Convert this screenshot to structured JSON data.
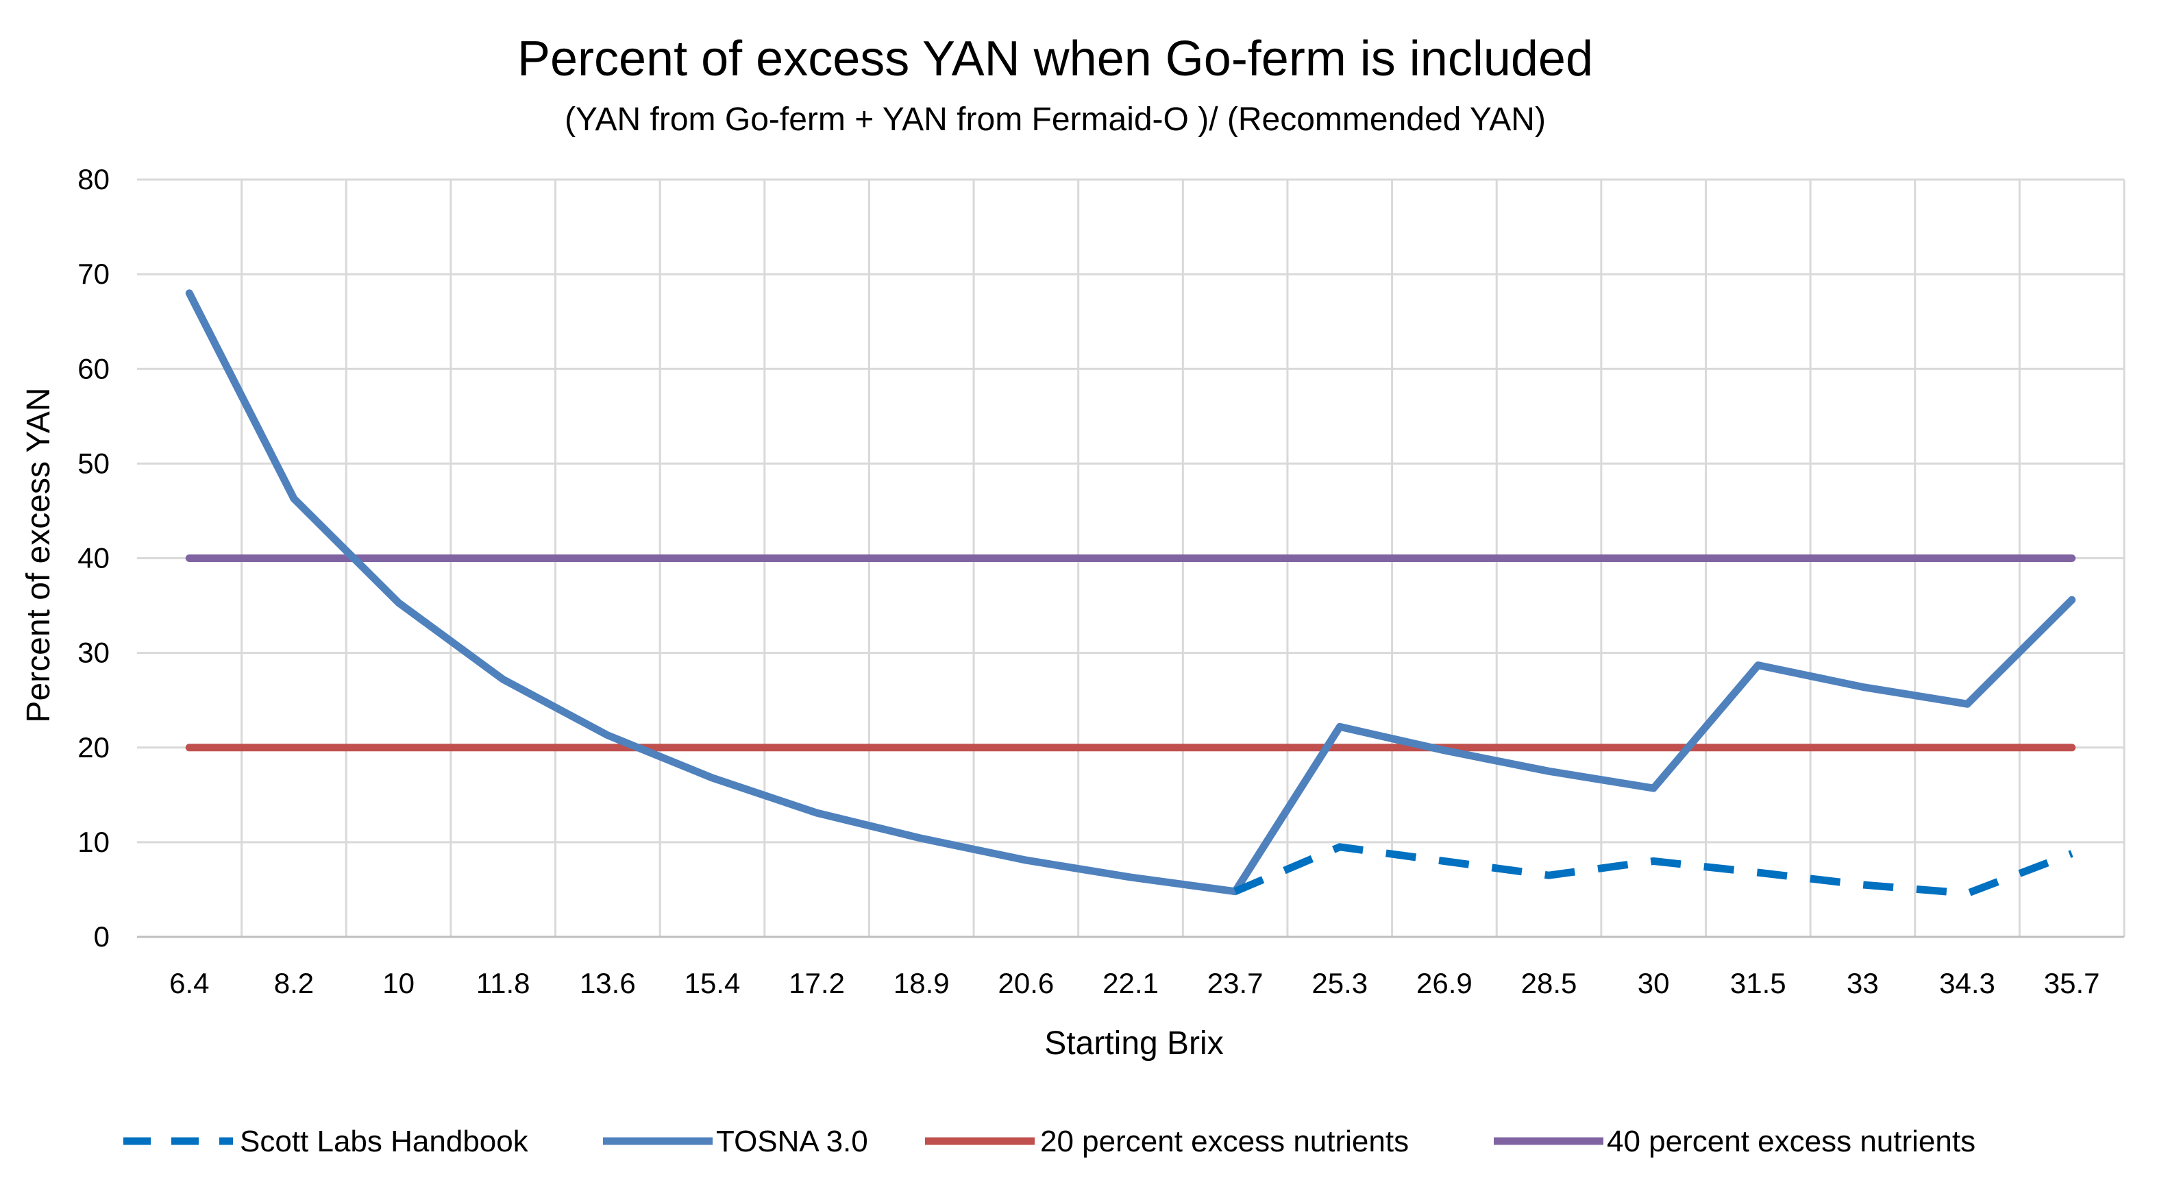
{
  "chart_data": {
    "type": "line",
    "title": "Percent of excess YAN when Go-ferm is included",
    "subtitle": "(YAN from Go-ferm + YAN from Fermaid-O )/ (Recommended YAN)",
    "xlabel": "Starting Brix",
    "ylabel": "Percent of excess YAN",
    "categories": [
      "6.4",
      "8.2",
      "10",
      "11.8",
      "13.6",
      "15.4",
      "17.2",
      "18.9",
      "20.6",
      "22.1",
      "23.7",
      "25.3",
      "26.9",
      "28.5",
      "30",
      "31.5",
      "33",
      "34.3",
      "35.7"
    ],
    "ylim": [
      0,
      80
    ],
    "yticks": [
      0,
      10,
      20,
      30,
      40,
      50,
      60,
      70,
      80
    ],
    "grid": true,
    "legend_position": "bottom",
    "series": [
      {
        "name": "Scott Labs Handbook",
        "color": "#0070c0",
        "dash": true,
        "values": [
          null,
          null,
          null,
          null,
          null,
          null,
          null,
          null,
          null,
          null,
          4.8,
          9.5,
          8.0,
          6.5,
          8.0,
          6.8,
          5.5,
          4.6,
          8.8
        ]
      },
      {
        "name": "TOSNA 3.0",
        "color": "#4f81bd",
        "dash": false,
        "values": [
          68,
          46.3,
          35.3,
          27.2,
          21.3,
          16.8,
          13.1,
          10.4,
          8.1,
          6.3,
          4.8,
          22.2,
          19.7,
          17.5,
          15.7,
          28.7,
          26.4,
          24.6,
          35.6
        ]
      },
      {
        "name": "20 percent excess nutrients",
        "color": "#c0504d",
        "dash": false,
        "values": [
          20,
          20,
          20,
          20,
          20,
          20,
          20,
          20,
          20,
          20,
          20,
          20,
          20,
          20,
          20,
          20,
          20,
          20,
          20
        ]
      },
      {
        "name": "40 percent excess nutrients",
        "color": "#8064a2",
        "dash": false,
        "values": [
          40,
          40,
          40,
          40,
          40,
          40,
          40,
          40,
          40,
          40,
          40,
          40,
          40,
          40,
          40,
          40,
          40,
          40,
          40
        ]
      }
    ]
  }
}
